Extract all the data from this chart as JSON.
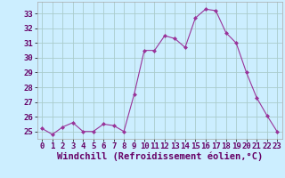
{
  "x": [
    0,
    1,
    2,
    3,
    4,
    5,
    6,
    7,
    8,
    9,
    10,
    11,
    12,
    13,
    14,
    15,
    16,
    17,
    18,
    19,
    20,
    21,
    22,
    23
  ],
  "y": [
    25.2,
    24.8,
    25.3,
    25.6,
    25.0,
    25.0,
    25.5,
    25.4,
    25.0,
    27.5,
    30.5,
    30.5,
    31.5,
    31.3,
    30.7,
    32.7,
    33.3,
    33.2,
    31.7,
    31.0,
    29.0,
    27.3,
    26.1,
    25.0
  ],
  "line_color": "#993399",
  "marker": "D",
  "marker_size": 2.0,
  "bg_color": "#cceeff",
  "grid_color": "#aacccc",
  "xlabel": "Windchill (Refroidissement éolien,°C)",
  "xlabel_fontsize": 7.5,
  "tick_fontsize": 6.5,
  "ylim": [
    24.5,
    33.8
  ],
  "xlim": [
    -0.5,
    23.5
  ],
  "yticks": [
    25,
    26,
    27,
    28,
    29,
    30,
    31,
    32,
    33
  ],
  "xticks": [
    0,
    1,
    2,
    3,
    4,
    5,
    6,
    7,
    8,
    9,
    10,
    11,
    12,
    13,
    14,
    15,
    16,
    17,
    18,
    19,
    20,
    21,
    22,
    23
  ]
}
